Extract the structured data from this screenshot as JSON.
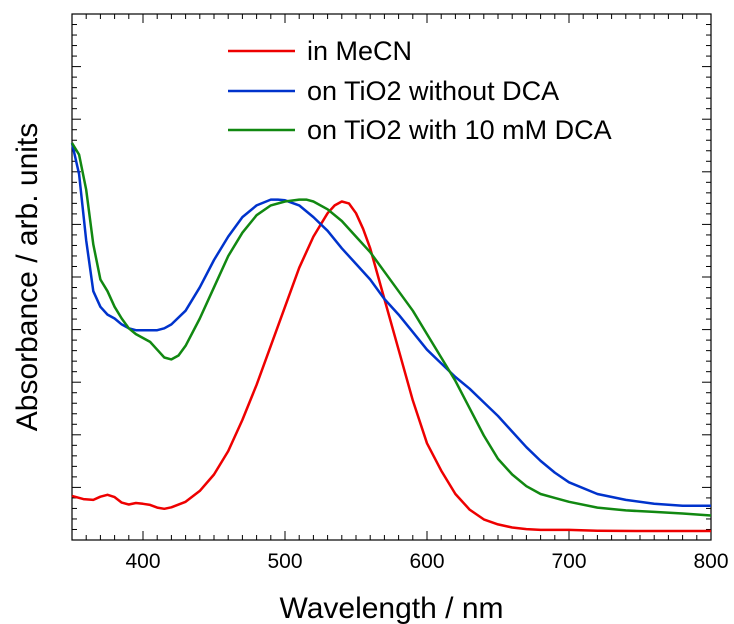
{
  "chart_data": {
    "type": "line",
    "title": "",
    "xlabel": "Wavelength / nm",
    "ylabel": "Absorbance / arb. units",
    "xlim": [
      350,
      800
    ],
    "ylim": [
      0,
      1.0
    ],
    "x_ticks": [
      400,
      500,
      600,
      700,
      800
    ],
    "y_tick_labels": false,
    "grid": false,
    "legend_position": "top-right",
    "series": [
      {
        "name": "in MeCN",
        "color": "#ee0000",
        "x": [
          350,
          358,
          365,
          370,
          375,
          380,
          385,
          390,
          395,
          400,
          405,
          410,
          415,
          420,
          430,
          440,
          450,
          460,
          470,
          480,
          490,
          500,
          510,
          520,
          530,
          535,
          540,
          545,
          550,
          555,
          560,
          570,
          580,
          590,
          600,
          610,
          620,
          630,
          640,
          650,
          660,
          670,
          680,
          700,
          720,
          750,
          780,
          800
        ],
        "y": [
          0.095,
          0.087,
          0.085,
          0.093,
          0.098,
          0.092,
          0.078,
          0.073,
          0.077,
          0.075,
          0.072,
          0.065,
          0.062,
          0.066,
          0.08,
          0.108,
          0.15,
          0.21,
          0.29,
          0.38,
          0.48,
          0.58,
          0.68,
          0.76,
          0.82,
          0.84,
          0.85,
          0.845,
          0.82,
          0.78,
          0.73,
          0.6,
          0.47,
          0.34,
          0.23,
          0.16,
          0.1,
          0.06,
          0.035,
          0.022,
          0.014,
          0.01,
          0.008,
          0.008,
          0.006,
          0.005,
          0.005,
          0.005
        ]
      },
      {
        "name": "on TiO2 without DCA",
        "color": "#0033cc",
        "x": [
          350,
          355,
          360,
          365,
          370,
          375,
          380,
          385,
          390,
          395,
          400,
          405,
          410,
          415,
          420,
          430,
          440,
          450,
          460,
          470,
          480,
          490,
          495,
          500,
          510,
          520,
          530,
          540,
          550,
          560,
          570,
          580,
          590,
          600,
          610,
          620,
          630,
          640,
          650,
          660,
          670,
          680,
          690,
          700,
          720,
          740,
          760,
          780,
          800
        ],
        "y": [
          1.0,
          0.92,
          0.75,
          0.62,
          0.58,
          0.56,
          0.55,
          0.535,
          0.525,
          0.52,
          0.52,
          0.52,
          0.52,
          0.525,
          0.535,
          0.57,
          0.63,
          0.7,
          0.76,
          0.81,
          0.84,
          0.855,
          0.855,
          0.853,
          0.84,
          0.81,
          0.775,
          0.73,
          0.69,
          0.65,
          0.6,
          0.56,
          0.515,
          0.47,
          0.435,
          0.4,
          0.37,
          0.335,
          0.3,
          0.26,
          0.22,
          0.185,
          0.155,
          0.13,
          0.1,
          0.085,
          0.075,
          0.07,
          0.07
        ]
      },
      {
        "name": "on TiO2 with 10 mM DCA",
        "color": "#118811",
        "x": [
          350,
          355,
          360,
          365,
          370,
          375,
          380,
          385,
          390,
          395,
          400,
          405,
          410,
          415,
          420,
          425,
          430,
          440,
          450,
          460,
          470,
          480,
          490,
          500,
          510,
          515,
          520,
          530,
          540,
          550,
          560,
          570,
          580,
          590,
          600,
          610,
          620,
          630,
          640,
          650,
          660,
          670,
          680,
          690,
          700,
          720,
          740,
          760,
          780,
          800
        ],
        "y": [
          1.0,
          0.97,
          0.88,
          0.74,
          0.65,
          0.62,
          0.58,
          0.55,
          0.525,
          0.51,
          0.5,
          0.49,
          0.47,
          0.45,
          0.445,
          0.455,
          0.48,
          0.55,
          0.63,
          0.71,
          0.77,
          0.815,
          0.84,
          0.85,
          0.855,
          0.855,
          0.85,
          0.83,
          0.8,
          0.76,
          0.72,
          0.67,
          0.62,
          0.57,
          0.51,
          0.45,
          0.39,
          0.32,
          0.25,
          0.19,
          0.15,
          0.12,
          0.1,
          0.09,
          0.08,
          0.065,
          0.058,
          0.054,
          0.05,
          0.045
        ]
      }
    ]
  }
}
